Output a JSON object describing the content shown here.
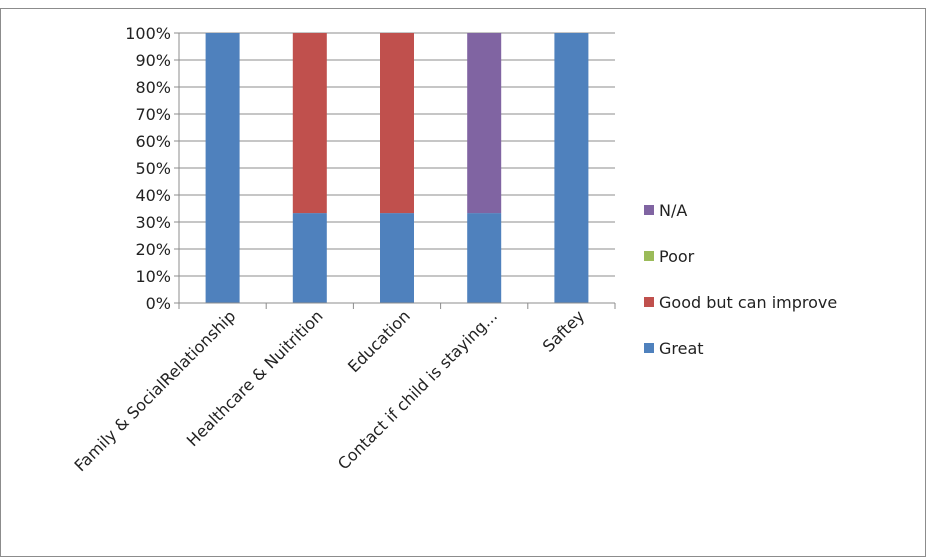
{
  "chart_data": {
    "type": "bar",
    "stacked": true,
    "percent": true,
    "categories": [
      "Family & SocialRelationship",
      "Healthcare & Nuitrition",
      "Education",
      "Contact if child is staying...",
      "Saftey"
    ],
    "series": [
      {
        "name": "Great",
        "values": [
          100,
          33.3,
          33.3,
          33.3,
          100
        ],
        "color": "#4f81bd"
      },
      {
        "name": "Good but can improve",
        "values": [
          0,
          66.7,
          66.7,
          0,
          0
        ],
        "color": "#c0504d"
      },
      {
        "name": "Poor",
        "values": [
          0,
          0,
          0,
          0,
          0
        ],
        "color": "#9bbb59"
      },
      {
        "name": "N/A",
        "values": [
          0,
          0,
          0,
          66.7,
          0
        ],
        "color": "#8064a2"
      }
    ],
    "y_ticks": [
      "0%",
      "10%",
      "20%",
      "30%",
      "40%",
      "50%",
      "60%",
      "70%",
      "80%",
      "90%",
      "100%"
    ],
    "ylim": [
      0,
      100
    ],
    "grid": true,
    "legend_position": "right",
    "legend_order": [
      "N/A",
      "Poor",
      "Good but can improve",
      "Great"
    ],
    "title": "",
    "xlabel": "",
    "ylabel": ""
  }
}
